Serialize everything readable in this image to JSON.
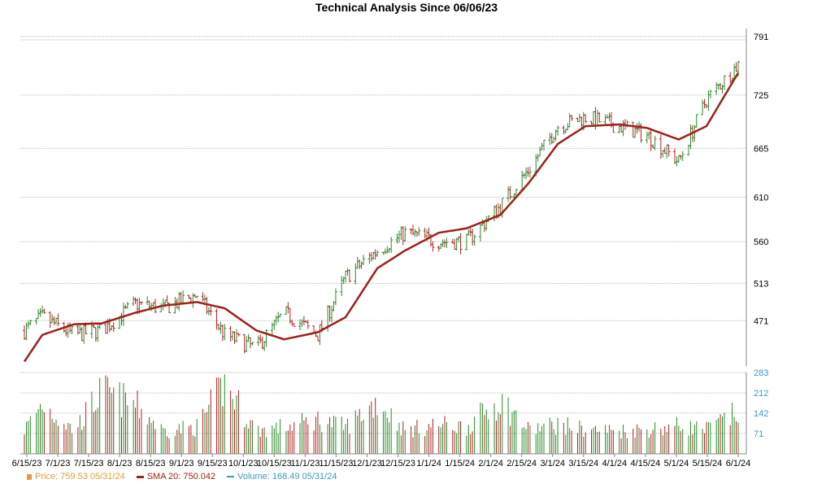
{
  "chart_data": {
    "type": "line",
    "title": "Technical Analysis Since 06/06/23",
    "price_axis": {
      "ylim": [
        420,
        800
      ],
      "ticks": [
        471,
        513,
        560,
        610,
        665,
        725,
        791
      ]
    },
    "volume_axis": {
      "ylim": [
        0,
        283
      ],
      "ticks": [
        71,
        142,
        212,
        283
      ]
    },
    "x_labels": [
      "6/15/23",
      "7/1/23",
      "7/15/23",
      "8/1/23",
      "8/15/23",
      "9/1/23",
      "9/15/23",
      "10/1/23",
      "10/15/23",
      "11/1/23",
      "11/15/23",
      "12/1/23",
      "12/15/23",
      "1/1/24",
      "1/15/24",
      "2/1/24",
      "2/15/24",
      "3/1/24",
      "3/15/24",
      "4/1/24",
      "4/15/24",
      "5/1/24",
      "5/15/24",
      "6/1/24"
    ],
    "series": [
      {
        "name": "Price",
        "key": "price",
        "x": [
          "6/6/23",
          "6/15/23",
          "7/1/23",
          "7/15/23",
          "8/1/23",
          "8/15/23",
          "9/1/23",
          "9/15/23",
          "10/1/23",
          "10/15/23",
          "11/1/23",
          "11/15/23",
          "12/1/23",
          "12/15/23",
          "1/1/24",
          "1/15/24",
          "2/1/24",
          "2/15/24",
          "3/1/24",
          "3/15/24",
          "4/1/24",
          "4/15/24",
          "5/1/24",
          "5/15/24",
          "5/31/24"
        ],
        "values": [
          460,
          475,
          455,
          460,
          490,
          485,
          500,
          455,
          440,
          480,
          455,
          520,
          550,
          570,
          560,
          560,
          600,
          640,
          690,
          700,
          690,
          680,
          650,
          720,
          759.53
        ]
      },
      {
        "name": "SMA 20",
        "key": "sma",
        "x": [
          "6/6/23",
          "6/15/23",
          "7/1/23",
          "7/15/23",
          "8/1/23",
          "8/15/23",
          "9/1/23",
          "9/15/23",
          "10/1/23",
          "10/15/23",
          "11/1/23",
          "11/15/23",
          "12/1/23",
          "12/15/23",
          "1/1/24",
          "1/15/24",
          "2/1/24",
          "2/15/24",
          "3/1/24",
          "3/15/24",
          "4/1/24",
          "4/15/24",
          "5/1/24",
          "5/15/24",
          "5/31/24"
        ],
        "values": [
          425,
          455,
          467,
          468,
          480,
          488,
          492,
          485,
          460,
          450,
          458,
          475,
          530,
          550,
          570,
          575,
          590,
          625,
          670,
          690,
          692,
          688,
          675,
          690,
          750.042
        ]
      },
      {
        "name": "Volume",
        "key": "volume",
        "x": [
          "6/6/23",
          "6/15/23",
          "7/1/23",
          "7/15/23",
          "8/1/23",
          "8/15/23",
          "9/1/23",
          "9/15/23",
          "10/1/23",
          "10/15/23",
          "11/1/23",
          "11/15/23",
          "12/1/23",
          "12/15/23",
          "1/1/24",
          "1/15/24",
          "2/1/24",
          "2/15/24",
          "3/1/24",
          "3/15/24",
          "4/1/24",
          "4/15/24",
          "5/1/24",
          "5/15/24",
          "5/31/24"
        ],
        "values": [
          100,
          205,
          95,
          255,
          200,
          95,
          110,
          283,
          95,
          110,
          140,
          110,
          215,
          95,
          120,
          110,
          220,
          100,
          120,
          100,
          95,
          100,
          115,
          100,
          168.49
        ]
      }
    ],
    "legend": [
      {
        "key": "price",
        "text": "Price: 759.53  05/31/24",
        "color": "#e89a38"
      },
      {
        "key": "sma",
        "text": "SMA 20: 750.042",
        "color": "#a0201a"
      },
      {
        "key": "volume",
        "text": "Volume: 168.49  05/31/24",
        "color": "#3a9bb5"
      }
    ],
    "grid": true,
    "legend_placement": "bottom-left",
    "colors": {
      "up": "#2a8a2a",
      "down": "#b22222",
      "sma": "#a0201a",
      "price_axis": "#000000",
      "volume_axis": "#3a9bb5",
      "grid": "#bbbbbb"
    }
  }
}
